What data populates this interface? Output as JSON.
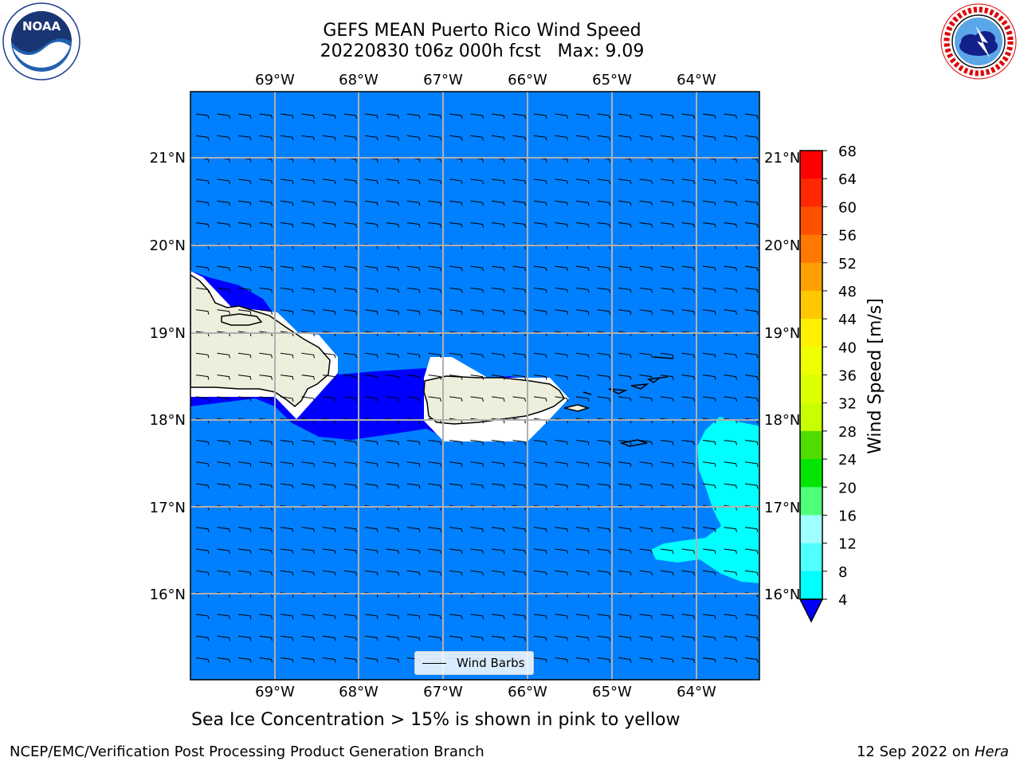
{
  "header": {
    "title_line1": "GEFS MEAN Puerto Rico Wind Speed",
    "title_line2": "20220830 t06z 000h fcst   Max: 9.09"
  },
  "logos": {
    "left": {
      "text": "NOAA",
      "ring_text": "NATIONAL OCEANIC AND ATMOSPHERIC ADMINISTRATION · U.S. DEPARTMENT OF COMMERCE"
    },
    "right": {
      "ring_text": "NATIONAL WEATHER SERVICE"
    }
  },
  "map": {
    "lon_labels": [
      "69°W",
      "68°W",
      "67°W",
      "66°W",
      "65°W",
      "64°W"
    ],
    "lat_labels": [
      "21°N",
      "20°N",
      "19°N",
      "18°N",
      "17°N",
      "16°N"
    ],
    "background_color": "#0080ff",
    "land_color": "#eeeedd",
    "legend_label": "Wind Barbs"
  },
  "colorbar": {
    "label": "Wind Speed [m/s]",
    "ticks": [
      "68",
      "64",
      "60",
      "56",
      "52",
      "48",
      "44",
      "40",
      "36",
      "32",
      "28",
      "24",
      "20",
      "16",
      "12",
      "8",
      "4"
    ],
    "colors": [
      "#ff0000",
      "#ff2800",
      "#ff5000",
      "#ff7800",
      "#ffa000",
      "#ffc800",
      "#fff000",
      "#f0ff00",
      "#dcff00",
      "#c8ff00",
      "#50dc00",
      "#00e600",
      "#50ff78",
      "#a0ffff",
      "#50ffff",
      "#00ffff",
      "#0080ff"
    ],
    "under_color": "#0000ff"
  },
  "caption": "Sea Ice Concentration > 15% is shown in pink to yellow",
  "footer": {
    "left": "NCEP/EMC/Verification Post Processing Product Generation Branch",
    "right_date": "12 Sep 2022 on",
    "right_machine": "Hera"
  }
}
